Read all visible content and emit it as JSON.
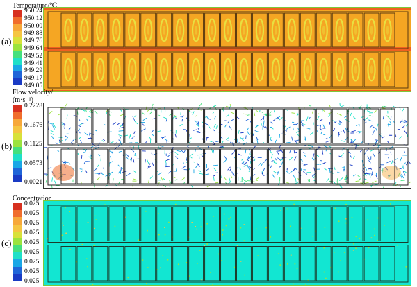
{
  "panels": [
    {
      "letter": "(a)",
      "title": "Temperature/℃",
      "ticks": [
        "950.24",
        "950.12",
        "950.00",
        "949.88",
        "949.76",
        "949.64",
        "949.52",
        "949.41",
        "949.29",
        "949.17",
        "949.05"
      ]
    },
    {
      "letter": "(b)",
      "title": "Flow velocity/",
      "title_line2": "(m·s⁻¹)",
      "ticks": [
        "0.2228",
        "0.1676",
        "0.1125",
        "0.0573",
        "0.0021"
      ]
    },
    {
      "letter": "(c)",
      "title": "Concentration",
      "ticks": [
        "0.025",
        "0.025",
        "0.025",
        "0.025",
        "0.025",
        "0.025",
        "0.025",
        "0.025",
        "0.025"
      ]
    }
  ],
  "colors": {
    "scale": [
      "#d7301f",
      "#f06d2c",
      "#f7a83a",
      "#f5c542",
      "#d8e13a",
      "#9be33e",
      "#45e07d",
      "#1fe0c8",
      "#1aa7e6",
      "#2065d8",
      "#1a3bc4"
    ],
    "temperature_fill": "#f5a623",
    "temperature_hot": "#f06020",
    "temperature_spot": "#e8e040",
    "velocity_fill": "#ffffff",
    "concentration_fill": "#12e6d2",
    "concentration_speck": "#9ee33a"
  },
  "grid": {
    "rows": 2,
    "cells_per_row": 21
  }
}
